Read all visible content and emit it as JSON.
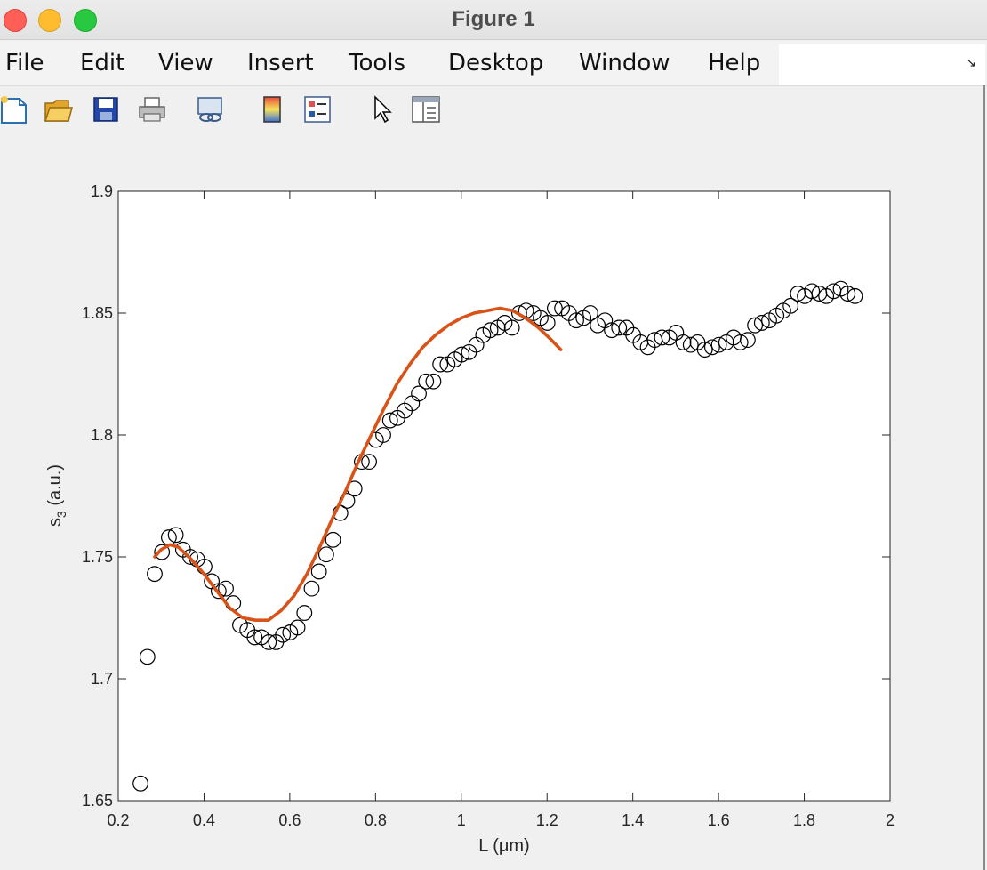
{
  "window": {
    "title": "Figure 1"
  },
  "menu": {
    "items": [
      "File",
      "Edit",
      "View",
      "Insert",
      "Tools",
      "Desktop",
      "Window",
      "Help"
    ]
  },
  "toolbar": {
    "icons": [
      "new-figure-icon",
      "open-file-icon",
      "save-icon",
      "print-icon",
      "link-plot-icon",
      "colorbar-icon",
      "legend-icon",
      "edit-plot-arrow-icon",
      "property-inspector-icon"
    ]
  },
  "chart_data": {
    "type": "scatter",
    "xlabel": "L (μm)",
    "ylabel": "s3 (a.u.)",
    "xlim": [
      0.2,
      2.0
    ],
    "ylim": [
      1.65,
      1.9
    ],
    "xticks": [
      0.2,
      0.4,
      0.6,
      0.8,
      1.0,
      1.2,
      1.4,
      1.6,
      1.8,
      2.0
    ],
    "xtick_labels": [
      "0.2",
      "0.4",
      "0.6",
      "0.8",
      "1",
      "1.2",
      "1.4",
      "1.6",
      "1.8",
      "2"
    ],
    "yticks": [
      1.65,
      1.7,
      1.75,
      1.8,
      1.85,
      1.9
    ],
    "ytick_labels": [
      "1.65",
      "1.7",
      "1.75",
      "1.8",
      "1.85",
      "1.9"
    ],
    "grid": false,
    "series": [
      {
        "marker": "open-circle",
        "color": "#000000",
        "x": [
          0.252,
          0.268,
          0.285,
          0.302,
          0.318,
          0.334,
          0.351,
          0.368,
          0.384,
          0.401,
          0.418,
          0.434,
          0.451,
          0.468,
          0.484,
          0.501,
          0.518,
          0.534,
          0.551,
          0.568,
          0.584,
          0.601,
          0.618,
          0.634,
          0.651,
          0.668,
          0.685,
          0.701,
          0.718,
          0.734,
          0.751,
          0.768,
          0.785,
          0.801,
          0.818,
          0.834,
          0.851,
          0.868,
          0.885,
          0.901,
          0.918,
          0.935,
          0.951,
          0.968,
          0.985,
          1.001,
          1.018,
          1.035,
          1.051,
          1.068,
          1.085,
          1.101,
          1.118,
          1.135,
          1.151,
          1.168,
          1.185,
          1.201,
          1.218,
          1.235,
          1.251,
          1.268,
          1.285,
          1.301,
          1.318,
          1.335,
          1.351,
          1.368,
          1.385,
          1.401,
          1.418,
          1.435,
          1.451,
          1.468,
          1.485,
          1.501,
          1.518,
          1.535,
          1.551,
          1.568,
          1.585,
          1.601,
          1.618,
          1.635,
          1.651,
          1.668,
          1.685,
          1.701,
          1.718,
          1.735,
          1.751,
          1.768,
          1.785,
          1.801,
          1.818,
          1.835,
          1.851,
          1.868,
          1.885,
          1.901,
          1.918
        ],
        "y": [
          1.657,
          1.709,
          1.743,
          1.752,
          1.758,
          1.759,
          1.753,
          1.75,
          1.749,
          1.746,
          1.74,
          1.736,
          1.737,
          1.731,
          1.722,
          1.72,
          1.717,
          1.717,
          1.715,
          1.715,
          1.718,
          1.719,
          1.721,
          1.727,
          1.737,
          1.744,
          1.751,
          1.757,
          1.768,
          1.773,
          1.778,
          1.789,
          1.789,
          1.798,
          1.8,
          1.806,
          1.807,
          1.81,
          1.813,
          1.817,
          1.822,
          1.822,
          1.829,
          1.829,
          1.831,
          1.833,
          1.834,
          1.837,
          1.841,
          1.843,
          1.844,
          1.846,
          1.844,
          1.85,
          1.851,
          1.85,
          1.848,
          1.846,
          1.852,
          1.852,
          1.85,
          1.847,
          1.848,
          1.85,
          1.845,
          1.847,
          1.843,
          1.844,
          1.844,
          1.841,
          1.838,
          1.836,
          1.839,
          1.84,
          1.84,
          1.842,
          1.838,
          1.837,
          1.838,
          1.835,
          1.836,
          1.837,
          1.838,
          1.84,
          1.838,
          1.839,
          1.845,
          1.846,
          1.847,
          1.849,
          1.851,
          1.853,
          1.858,
          1.857,
          1.859,
          1.858,
          1.857,
          1.859,
          1.86,
          1.858,
          1.857
        ]
      },
      {
        "marker": "line",
        "color": "#d95319",
        "x": [
          0.285,
          0.3,
          0.32,
          0.34,
          0.37,
          0.4,
          0.43,
          0.46,
          0.49,
          0.52,
          0.55,
          0.58,
          0.61,
          0.64,
          0.67,
          0.7,
          0.73,
          0.76,
          0.79,
          0.82,
          0.85,
          0.88,
          0.91,
          0.94,
          0.97,
          1.0,
          1.03,
          1.06,
          1.09,
          1.12,
          1.15,
          1.18,
          1.21,
          1.232
        ],
        "y": [
          1.75,
          1.753,
          1.755,
          1.754,
          1.749,
          1.743,
          1.736,
          1.729,
          1.725,
          1.724,
          1.724,
          1.728,
          1.734,
          1.743,
          1.754,
          1.766,
          1.777,
          1.789,
          1.8,
          1.811,
          1.821,
          1.829,
          1.836,
          1.841,
          1.845,
          1.848,
          1.85,
          1.851,
          1.852,
          1.851,
          1.848,
          1.844,
          1.839,
          1.835
        ]
      }
    ]
  }
}
